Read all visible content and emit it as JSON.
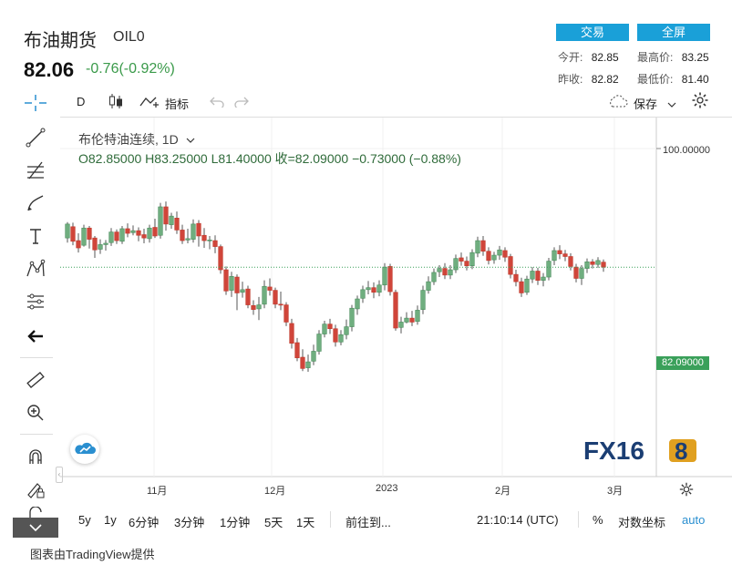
{
  "header": {
    "name": "布油期货",
    "code": "OIL0",
    "price": "82.06",
    "change": "-0.76(-0.92%)",
    "trade_button": "交易",
    "fullscreen_button": "全屏",
    "stats": [
      {
        "label": "今开:",
        "value": "82.85"
      },
      {
        "label": "最高价:",
        "value": "83.25"
      },
      {
        "label": "昨收:",
        "value": "82.82"
      },
      {
        "label": "最低价:",
        "value": "81.40"
      }
    ]
  },
  "toolbar": {
    "interval": "D",
    "indicators_label": "指标",
    "save_label": "保存"
  },
  "legend": {
    "series_title": "布伦特油连续, 1D",
    "ohlc": "O82.85000  H83.25000  L81.40000  收=82.09000  −0.73000 (−0.88%)"
  },
  "price_axis": {
    "top_label": "100.00000",
    "current_label": "82.09000"
  },
  "chart_data": {
    "type": "candlestick",
    "x_ticks": [
      "11月",
      "12月",
      "2023",
      "2月",
      "3月"
    ],
    "y_ticks": [
      100.0
    ],
    "last_close": 82.09,
    "candles": [
      [
        86.5,
        88.6,
        88.9,
        85.8
      ],
      [
        88.2,
        86.0,
        88.8,
        85.4
      ],
      [
        86.1,
        85.0,
        87.2,
        84.3
      ],
      [
        85.4,
        88.0,
        88.5,
        85.2
      ],
      [
        88.0,
        86.3,
        88.3,
        84.9
      ],
      [
        86.5,
        84.7,
        86.8,
        83.5
      ],
      [
        84.8,
        85.5,
        86.3,
        84.1
      ],
      [
        85.5,
        85.7,
        86.2,
        84.6
      ],
      [
        85.8,
        87.4,
        88.0,
        85.3
      ],
      [
        87.4,
        86.1,
        87.8,
        85.6
      ],
      [
        86.0,
        87.9,
        88.3,
        85.6
      ],
      [
        87.9,
        87.2,
        88.7,
        86.6
      ],
      [
        87.3,
        87.6,
        88.4,
        86.9
      ],
      [
        87.6,
        86.9,
        88.1,
        86.0
      ],
      [
        87.0,
        86.5,
        87.9,
        85.7
      ],
      [
        86.4,
        88.0,
        88.5,
        85.8
      ],
      [
        88.1,
        86.8,
        89.4,
        86.5
      ],
      [
        86.9,
        91.2,
        91.8,
        86.4
      ],
      [
        91.2,
        88.6,
        92.0,
        87.6
      ],
      [
        88.5,
        89.8,
        90.3,
        87.9
      ],
      [
        89.5,
        87.7,
        90.5,
        87.1
      ],
      [
        87.7,
        86.1,
        88.5,
        85.6
      ],
      [
        86.2,
        86.4,
        87.9,
        85.7
      ],
      [
        86.3,
        88.6,
        89.3,
        85.8
      ],
      [
        88.7,
        86.8,
        89.2,
        85.2
      ],
      [
        86.9,
        86.1,
        88.0,
        85.0
      ],
      [
        86.1,
        86.2,
        86.8,
        84.8
      ],
      [
        86.1,
        85.2,
        86.9,
        84.2
      ],
      [
        85.2,
        81.7,
        85.5,
        81.1
      ],
      [
        81.7,
        78.5,
        82.2,
        77.9
      ],
      [
        78.6,
        80.7,
        81.4,
        77.6
      ],
      [
        80.6,
        78.2,
        81.0,
        75.6
      ],
      [
        78.3,
        78.7,
        79.9,
        77.5
      ],
      [
        78.8,
        76.4,
        79.3,
        75.9
      ],
      [
        76.3,
        75.7,
        77.1,
        74.9
      ],
      [
        75.8,
        76.4,
        77.6,
        74.1
      ],
      [
        76.5,
        79.2,
        80.1,
        75.9
      ],
      [
        79.1,
        78.6,
        80.4,
        77.8
      ],
      [
        78.6,
        76.5,
        79.0,
        75.9
      ],
      [
        76.5,
        76.4,
        78.4,
        75.6
      ],
      [
        76.4,
        73.8,
        76.8,
        73.2
      ],
      [
        73.6,
        70.6,
        74.3,
        69.8
      ],
      [
        70.7,
        68.4,
        71.4,
        67.9
      ],
      [
        68.5,
        66.8,
        69.7,
        66.4
      ],
      [
        66.9,
        67.8,
        68.9,
        66.3
      ],
      [
        67.9,
        69.4,
        70.4,
        67.3
      ],
      [
        69.4,
        72.0,
        72.6,
        68.9
      ],
      [
        72.0,
        73.5,
        74.0,
        71.5
      ],
      [
        73.5,
        72.8,
        74.3,
        72.0
      ],
      [
        72.8,
        70.8,
        73.4,
        70.1
      ],
      [
        70.8,
        71.9,
        72.6,
        70.3
      ],
      [
        71.9,
        73.1,
        74.2,
        71.2
      ],
      [
        73.1,
        75.9,
        76.4,
        72.4
      ],
      [
        75.8,
        77.3,
        77.8,
        74.9
      ],
      [
        77.4,
        78.7,
        79.3,
        76.7
      ],
      [
        78.7,
        79.0,
        80.0,
        78.0
      ],
      [
        79.0,
        78.3,
        79.8,
        77.4
      ],
      [
        78.3,
        79.4,
        80.1,
        77.7
      ],
      [
        79.4,
        82.1,
        82.7,
        78.6
      ],
      [
        82.2,
        78.4,
        82.6,
        77.8
      ],
      [
        78.3,
        72.9,
        78.7,
        72.5
      ],
      [
        73.0,
        73.8,
        74.6,
        72.1
      ],
      [
        73.8,
        74.4,
        75.3,
        73.6
      ],
      [
        74.4,
        73.8,
        75.5,
        73.2
      ],
      [
        73.9,
        75.6,
        76.3,
        73.4
      ],
      [
        75.7,
        78.6,
        79.3,
        75.0
      ],
      [
        78.6,
        79.9,
        80.7,
        78.1
      ],
      [
        79.9,
        81.3,
        81.9,
        79.4
      ],
      [
        81.4,
        81.9,
        82.4,
        80.6
      ],
      [
        81.9,
        80.9,
        82.7,
        80.3
      ],
      [
        80.9,
        81.7,
        82.4,
        80.3
      ],
      [
        81.7,
        83.4,
        84.0,
        81.2
      ],
      [
        83.5,
        83.0,
        84.3,
        82.3
      ],
      [
        83.0,
        82.3,
        83.7,
        81.6
      ],
      [
        82.3,
        84.3,
        84.8,
        81.8
      ],
      [
        84.2,
        86.1,
        86.7,
        83.6
      ],
      [
        86.1,
        84.5,
        86.8,
        83.8
      ],
      [
        84.5,
        83.1,
        85.1,
        82.5
      ],
      [
        83.2,
        83.9,
        84.4,
        82.6
      ],
      [
        83.9,
        84.7,
        85.3,
        83.2
      ],
      [
        84.6,
        83.6,
        85.1,
        82.9
      ],
      [
        83.7,
        81.0,
        84.1,
        80.4
      ],
      [
        81.0,
        79.9,
        81.7,
        79.2
      ],
      [
        79.9,
        78.2,
        80.5,
        77.6
      ],
      [
        78.3,
        80.3,
        80.8,
        77.9
      ],
      [
        80.3,
        81.5,
        82.1,
        79.7
      ],
      [
        81.5,
        80.1,
        82.0,
        79.4
      ],
      [
        80.1,
        80.6,
        81.2,
        79.2
      ],
      [
        80.6,
        83.0,
        83.5,
        80.1
      ],
      [
        83.1,
        84.6,
        85.1,
        82.4
      ],
      [
        84.6,
        84.1,
        85.4,
        83.3
      ],
      [
        84.1,
        83.7,
        84.7,
        83.0
      ],
      [
        83.7,
        82.2,
        84.2,
        81.6
      ],
      [
        82.1,
        80.4,
        82.6,
        79.8
      ],
      [
        80.4,
        81.9,
        82.4,
        79.4
      ],
      [
        81.9,
        82.9,
        83.4,
        81.2
      ],
      [
        82.9,
        82.5,
        83.3,
        81.9
      ],
      [
        82.5,
        83.1,
        83.6,
        82.0
      ],
      [
        82.85,
        82.09,
        83.25,
        81.4
      ]
    ]
  }
}
